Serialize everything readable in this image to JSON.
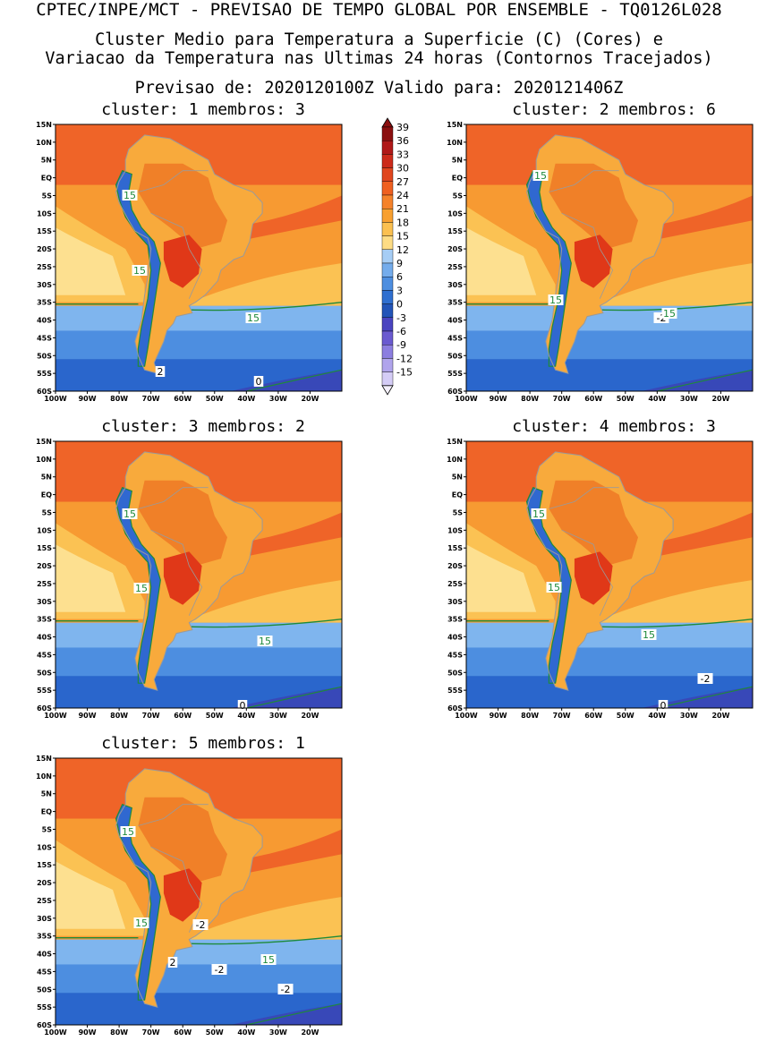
{
  "header": {
    "line1": "CPTEC/INPE/MCT - PREVISAO DE TEMPO GLOBAL POR ENSEMBLE - TQ0126L028",
    "line2": "Cluster Medio para Temperatura a Superficie (C) (Cores) e",
    "line3": "Variacao da Temperatura nas Ultimas 24 horas (Contornos Tracejados)",
    "line4": "Previsao de: 2020120100Z   Valido para: 2020121406Z"
  },
  "axes": {
    "lat_labels": [
      "15N",
      "10N",
      "5N",
      "EQ",
      "5S",
      "10S",
      "15S",
      "20S",
      "25S",
      "30S",
      "35S",
      "40S",
      "45S",
      "50S",
      "55S",
      "60S"
    ],
    "lon_labels": [
      "100W",
      "90W",
      "80W",
      "70W",
      "60W",
      "50W",
      "40W",
      "30W",
      "20W"
    ]
  },
  "colorbar": {
    "labels": [
      "39",
      "36",
      "33",
      "30",
      "27",
      "24",
      "21",
      "18",
      "15",
      "12",
      "9",
      "6",
      "3",
      "0",
      "-3",
      "-6",
      "-9",
      "-12",
      "-15"
    ],
    "colors": [
      "#8b0f0f",
      "#b01818",
      "#cc2a1a",
      "#e0461e",
      "#ef6020",
      "#f5822a",
      "#f8a030",
      "#fbc050",
      "#fddc84",
      "#a6cdf5",
      "#74acec",
      "#4d8ee0",
      "#2f6fd0",
      "#2254b8",
      "#4a44c0",
      "#6a5ad0",
      "#8c7ee0",
      "#b0a4ec",
      "#d4ccf6"
    ]
  },
  "colors": {
    "sea_north": "#ef6428",
    "sea_mid": "#f79a32",
    "sea_subtrop": "#fbc253",
    "sea_pale": "#fde090",
    "sea_cold1": "#7fb5ee",
    "sea_cold2": "#4d8ee0",
    "sea_cold3": "#2a66cc",
    "sea_cold4": "#3848b8",
    "land_hot": "#e03818",
    "land_warm": "#f08028",
    "land_mild": "#f8aa3c",
    "andes": "#3068d0",
    "contour_green": "#1e8a3a",
    "borders": "#9a9a9a"
  },
  "clusters": [
    {
      "title": "cluster: 1  membros: 3",
      "labels": [
        "15",
        "15",
        "15",
        "2",
        "0"
      ]
    },
    {
      "title": "cluster: 2  membros: 6",
      "labels": [
        "15",
        "15",
        "-2",
        "15"
      ]
    },
    {
      "title": "cluster: 3  membros: 2",
      "labels": [
        "15",
        "15",
        "15",
        "0"
      ]
    },
    {
      "title": "cluster: 4  membros: 3",
      "labels": [
        "15",
        "15",
        "15",
        "-2",
        "0"
      ]
    },
    {
      "title": "cluster: 5  membros: 1",
      "labels": [
        "15",
        "15",
        "-2",
        "2",
        "-2",
        "15",
        "-2"
      ]
    }
  ]
}
